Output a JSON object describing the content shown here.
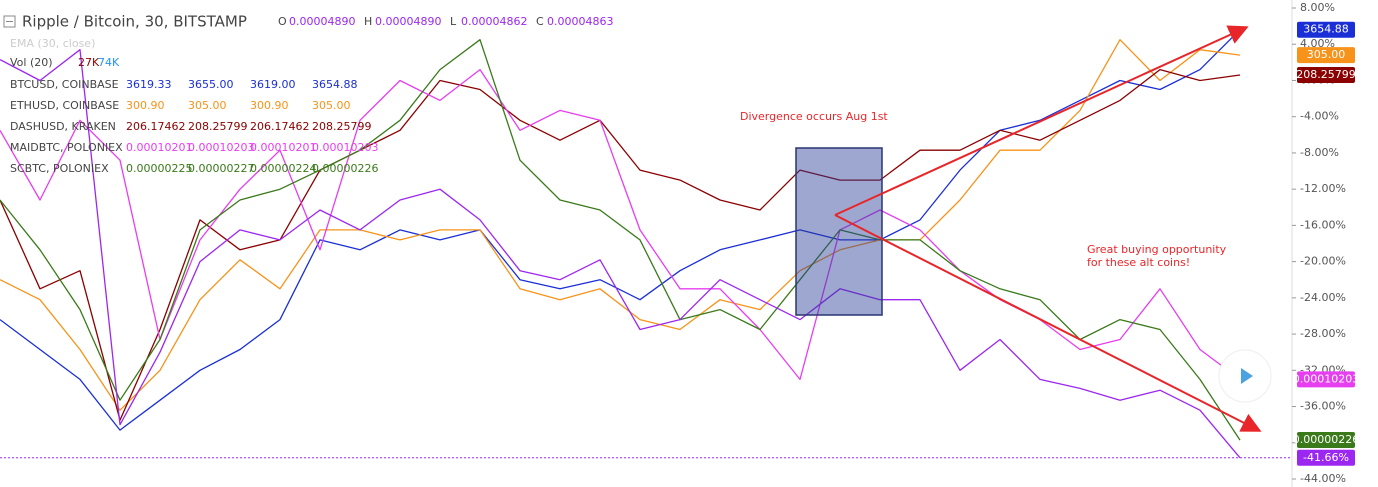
{
  "chart_data": {
    "type": "line",
    "title": "Ripple / Bitcoin, 30, BITSTAMP",
    "ohlc": [
      {
        "key": "O",
        "value": "0.00004890"
      },
      {
        "key": "H",
        "value": "0.00004890"
      },
      {
        "key": "L",
        "value": "0.00004862"
      },
      {
        "key": "C",
        "value": "0.00004863"
      }
    ],
    "indicators": {
      "ema": "EMA (30, close)",
      "vol": "Vol (20)",
      "vol_values": [
        "27K",
        "74K"
      ]
    },
    "annotations": [
      "Divergence occurs Aug 1st",
      "Great buying opportunity",
      "for these alt coins!"
    ],
    "x": [
      0,
      1,
      2,
      3,
      4,
      5,
      6,
      7,
      8,
      9,
      10,
      11,
      12,
      13,
      14,
      15,
      16,
      17,
      18,
      19,
      20,
      21,
      22,
      23,
      24,
      25,
      26,
      27,
      28,
      29,
      30,
      31
    ],
    "xlim": [
      0,
      32.25
    ],
    "ylim": [
      -44,
      8
    ],
    "yticks": [
      {
        "value": 8,
        "label": "8.00%"
      },
      {
        "value": 4,
        "label": "4.00%"
      },
      {
        "value": 0,
        "label": "0.00%"
      },
      {
        "value": -4,
        "label": "-4.00%"
      },
      {
        "value": -8,
        "label": "-8.00%"
      },
      {
        "value": -12,
        "label": "-12.00%"
      },
      {
        "value": -16,
        "label": "-16.00%"
      },
      {
        "value": -20,
        "label": "-20.00%"
      },
      {
        "value": -24,
        "label": "-24.00%"
      },
      {
        "value": -28,
        "label": "-28.00%"
      },
      {
        "value": -32,
        "label": "-32.00%"
      },
      {
        "value": -36,
        "label": "-36.00%"
      },
      {
        "value": -40,
        "label": "-40.00%"
      },
      {
        "value": -44,
        "label": "-44.00%"
      }
    ],
    "main": {
      "color": "#9c27f0",
      "values": [
        2.3,
        0,
        3.4,
        -38,
        -30,
        -20,
        -16.5,
        -17.6,
        -14.3,
        -16.5,
        -13.2,
        -12,
        -15.4,
        -21,
        -22,
        -19.8,
        -27.5,
        -26.4,
        -22,
        -24.2,
        -26.4,
        -23,
        -24.2,
        -24.2,
        -32,
        -28.6,
        -33,
        -34,
        -35.3,
        -34.2,
        -36.4,
        -41.66
      ],
      "last_label": "-41.66%"
    },
    "series": [
      {
        "name": "BTCUSD, COINBASE",
        "color": "#1a2fd6",
        "ohlc": [
          "3619.33",
          "3655.00",
          "3619.00",
          "3654.88"
        ],
        "last_label": "3654.88",
        "values": [
          -26.4,
          -29.7,
          -33,
          -38.6,
          -35.3,
          -32,
          -29.7,
          -26.4,
          -17.6,
          -18.7,
          -16.5,
          -17.6,
          -16.5,
          -22,
          -23,
          -22,
          -24.2,
          -21,
          -18.7,
          -17.6,
          -16.5,
          -17.6,
          -17.6,
          -15.4,
          -9.9,
          -5.5,
          -4.4,
          -2.2,
          0,
          -1,
          1.2,
          5.6
        ]
      },
      {
        "name": "ETHUSD, COINBASE",
        "color": "#f7931a",
        "ohlc": [
          "300.90",
          "305.00",
          "300.90",
          "305.00"
        ],
        "last_label": "305.00",
        "values": [
          -22,
          -24.2,
          -29.7,
          -36.4,
          -32,
          -24.2,
          -19.8,
          -23,
          -16.5,
          -16.5,
          -17.6,
          -16.5,
          -16.5,
          -23,
          -24.2,
          -23,
          -26.4,
          -27.5,
          -24.2,
          -25.3,
          -21,
          -18.7,
          -17.6,
          -17.6,
          -13.2,
          -7.7,
          -7.7,
          -3.3,
          4.5,
          0,
          3.4,
          2.8
        ]
      },
      {
        "name": "DASHUSD, KRAKEN",
        "color": "#8b0000",
        "ohlc": [
          "206.17462",
          "208.25799",
          "206.17462",
          "208.25799"
        ],
        "last_label": "208.25799",
        "values": [
          -13.2,
          -23,
          -21,
          -37.5,
          -27.5,
          -15.4,
          -18.7,
          -17.6,
          -9.9,
          -7.7,
          -5.5,
          0,
          -1,
          -4.4,
          -6.6,
          -4.4,
          -9.9,
          -11,
          -13.2,
          -14.3,
          -9.9,
          -11,
          -11,
          -7.7,
          -7.7,
          -5.5,
          -6.6,
          -4.4,
          -2.2,
          1.2,
          0,
          0.6
        ]
      },
      {
        "name": "MAIDBTC, POLONIEX",
        "color": "#e63ef0",
        "ohlc": [
          "0.00010201",
          "0.00010203",
          "0.00010201",
          "0.00010203"
        ],
        "last_label": "0.00010203",
        "values": [
          -5.5,
          -13.2,
          -4.4,
          -8.8,
          -28.6,
          -17.6,
          -12,
          -7.7,
          -18.7,
          -4.4,
          0,
          -2.2,
          1.2,
          -5.5,
          -3.3,
          -4.4,
          -16.5,
          -23,
          -23,
          -27.5,
          -33,
          -16.5,
          -14.3,
          -16.5,
          -21,
          -24.2,
          -26.4,
          -29.7,
          -28.6,
          -23,
          -29.7,
          -33
        ]
      },
      {
        "name": "SCBTC, POLONIEX",
        "color": "#3a7a1a",
        "ohlc": [
          "0.00000225",
          "0.00000227",
          "0.00000224",
          "0.00000226"
        ],
        "last_label": "0.00000226",
        "values": [
          -13.2,
          -18.7,
          -25.3,
          -35.3,
          -28.6,
          -16.5,
          -13.2,
          -12,
          -9.9,
          -7.7,
          -4.4,
          1.2,
          4.5,
          -8.8,
          -13.2,
          -14.3,
          -17.6,
          -26.4,
          -25.3,
          -27.5,
          -22,
          -16.5,
          -17.6,
          -17.6,
          -21,
          -23,
          -24.2,
          -28.6,
          -26.4,
          -27.5,
          -33,
          -39.7
        ]
      }
    ]
  }
}
